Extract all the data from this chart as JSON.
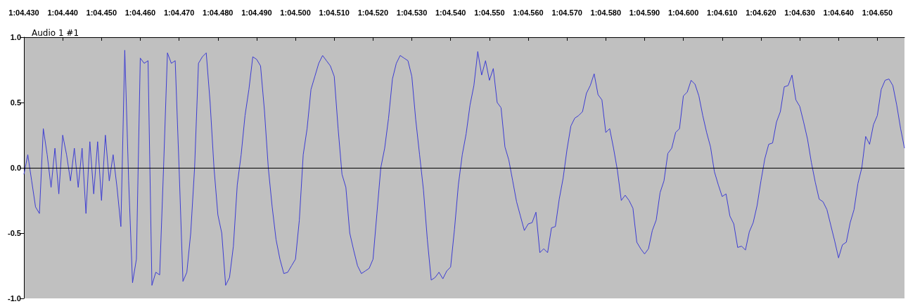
{
  "chart_data": {
    "type": "line",
    "title": "Audio 1 #1",
    "color": "#3c3cd2",
    "marker": "none",
    "categories": [
      "1:04.430",
      null,
      null,
      null,
      null,
      null,
      null,
      null,
      null,
      null,
      "1:04.440",
      null,
      null,
      null,
      null,
      null,
      null,
      null,
      null,
      null,
      "1:04.450",
      null,
      null,
      null,
      null,
      null,
      null,
      null,
      null,
      null,
      "1:04.460",
      null,
      null,
      null,
      null,
      null,
      null,
      null,
      null,
      null,
      "1:04.470",
      null,
      null,
      null,
      null,
      null,
      null,
      null,
      null,
      null,
      "1:04.480",
      null,
      null,
      null,
      null,
      null,
      null,
      null,
      null,
      null,
      "1:04.490",
      null,
      null,
      null,
      null,
      null,
      null,
      null,
      null,
      null,
      "1:04.500",
      null,
      null,
      null,
      null,
      null,
      null,
      null,
      null,
      null,
      "1:04.510",
      null,
      null,
      null,
      null,
      null,
      null,
      null,
      null,
      null,
      "1:04.520",
      null,
      null,
      null,
      null,
      null,
      null,
      null,
      null,
      null,
      "1:04.530",
      null,
      null,
      null,
      null,
      null,
      null,
      null,
      null,
      null,
      "1:04.540",
      null,
      null,
      null,
      null,
      null,
      null,
      null,
      null,
      null,
      "1:04.550",
      null,
      null,
      null,
      null,
      null,
      null,
      null,
      null,
      null,
      "1:04.560",
      null,
      null,
      null,
      null,
      null,
      null,
      null,
      null,
      null,
      "1:04.570",
      null,
      null,
      null,
      null,
      null,
      null,
      null,
      null,
      null,
      "1:04.580",
      null,
      null,
      null,
      null,
      null,
      null,
      null,
      null,
      null,
      "1:04.590",
      null,
      null,
      null,
      null,
      null,
      null,
      null,
      null,
      null,
      "1:04.600",
      null,
      null,
      null,
      null,
      null,
      null,
      null,
      null,
      null,
      "1:04.610",
      null,
      null,
      null,
      null,
      null,
      null,
      null,
      null,
      null,
      "1:04.620",
      null,
      null,
      null,
      null,
      null,
      null,
      null,
      null,
      null,
      "1:04.630",
      null,
      null,
      null,
      null,
      null,
      null,
      null,
      null,
      null,
      "1:04.640",
      null,
      null,
      null,
      null,
      null,
      null,
      null,
      null,
      null,
      "1:04.650",
      null,
      null,
      null,
      null,
      null,
      null,
      null
    ],
    "ylim": [
      -1,
      1
    ],
    "yticks": [
      {
        "value": 1,
        "label": "1.0"
      },
      {
        "value": 0.5,
        "label": "0.5"
      },
      {
        "value": 0,
        "label": "0.0"
      },
      {
        "value": -0.5,
        "label": "-0.5"
      },
      {
        "value": -1,
        "label": "-1.0"
      }
    ],
    "ref_lines": [
      {
        "axis": "y",
        "value": 0,
        "color": "#000000"
      }
    ],
    "values": [
      -0.05,
      0.1,
      -0.1,
      -0.3,
      -0.35,
      0.3,
      0.1,
      -0.15,
      0.15,
      -0.2,
      0.25,
      0.1,
      -0.1,
      0.15,
      -0.15,
      0.15,
      -0.35,
      0.2,
      -0.2,
      0.2,
      -0.25,
      0.25,
      -0.1,
      0.1,
      -0.15,
      -0.45,
      0.9,
      -0.1,
      -0.88,
      -0.7,
      0.84,
      0.8,
      0.82,
      -0.9,
      -0.8,
      -0.82,
      0,
      0.88,
      0.8,
      0.82,
      0,
      -0.87,
      -0.8,
      -0.5,
      0,
      0.8,
      0.85,
      0.88,
      0.5,
      0,
      -0.36,
      -0.5,
      -0.9,
      -0.84,
      -0.6,
      -0.13,
      0.1,
      0.4,
      0.6,
      0.85,
      0.83,
      0.78,
      0.44,
      0,
      -0.3,
      -0.55,
      -0.7,
      -0.81,
      -0.8,
      -0.75,
      -0.7,
      -0.4,
      0.1,
      0.3,
      0.6,
      0.7,
      0.8,
      0.86,
      0.82,
      0.78,
      0.7,
      0.3,
      -0.05,
      -0.15,
      -0.5,
      -0.63,
      -0.75,
      -0.81,
      -0.79,
      -0.77,
      -0.7,
      -0.35,
      0,
      0.15,
      0.38,
      0.68,
      0.8,
      0.86,
      0.84,
      0.82,
      0.7,
      0.37,
      0.1,
      -0.17,
      -0.55,
      -0.86,
      -0.84,
      -0.8,
      -0.85,
      -0.79,
      -0.76,
      -0.47,
      -0.13,
      0.1,
      0.26,
      0.48,
      0.63,
      0.89,
      0.71,
      0.82,
      0.67,
      0.76,
      0.5,
      0.46,
      0.16,
      0.06,
      -0.1,
      -0.26,
      -0.37,
      -0.48,
      -0.43,
      -0.42,
      -0.34,
      -0.65,
      -0.62,
      -0.65,
      -0.46,
      -0.45,
      -0.24,
      -0.08,
      0.14,
      0.32,
      0.38,
      0.4,
      0.43,
      0.57,
      0.63,
      0.72,
      0.56,
      0.52,
      0.27,
      0.3,
      0.15,
      -0.02,
      -0.25,
      -0.21,
      -0.25,
      -0.31,
      -0.57,
      -0.62,
      -0.66,
      -0.62,
      -0.48,
      -0.4,
      -0.19,
      -0.1,
      0.11,
      0.15,
      0.27,
      0.3,
      0.55,
      0.58,
      0.67,
      0.64,
      0.55,
      0.4,
      0.27,
      0.16,
      -0.03,
      -0.13,
      -0.22,
      -0.2,
      -0.37,
      -0.43,
      -0.61,
      -0.6,
      -0.63,
      -0.49,
      -0.42,
      -0.29,
      -0.1,
      0.07,
      0.18,
      0.19,
      0.35,
      0.43,
      0.62,
      0.63,
      0.71,
      0.52,
      0.47,
      0.35,
      0.22,
      0.04,
      -0.11,
      -0.24,
      -0.26,
      -0.32,
      -0.44,
      -0.56,
      -0.69,
      -0.59,
      -0.57,
      -0.42,
      -0.32,
      -0.12,
      0,
      0.24,
      0.18,
      0.33,
      0.4,
      0.6,
      0.67,
      0.68,
      0.63,
      0.48,
      0.3,
      0.15
    ]
  }
}
